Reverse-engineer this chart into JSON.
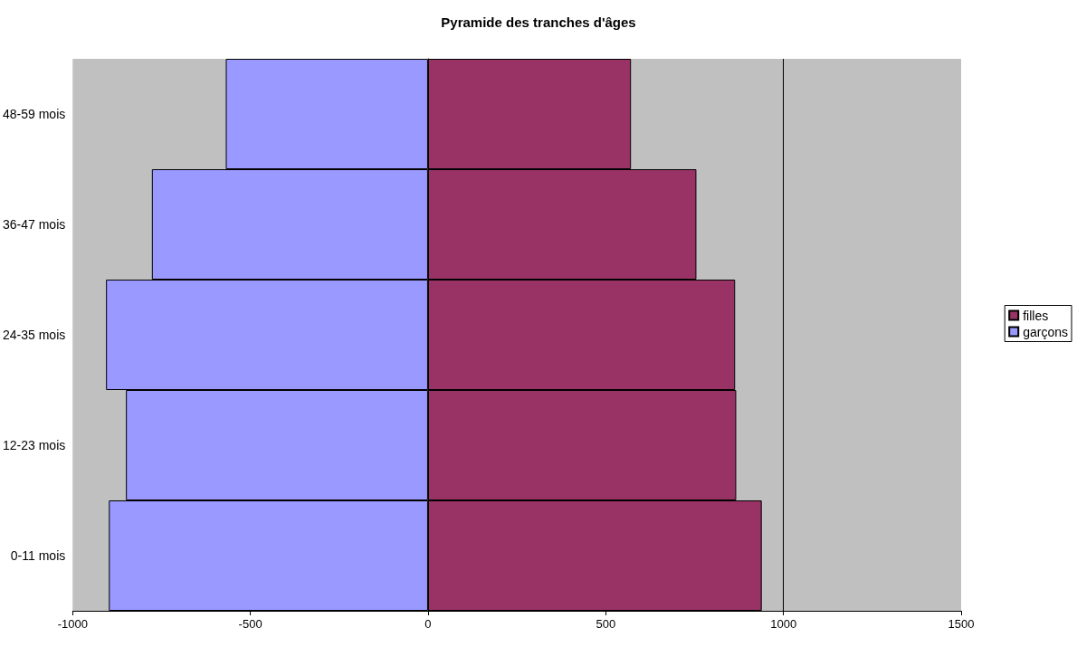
{
  "chart_data": {
    "type": "bar",
    "title": "Pyramide des tranches d'âges",
    "orientation": "horizontal",
    "categories": [
      "48-59 mois",
      "36-47 mois",
      "24-35 mois",
      "12-23 mois",
      "0-11 mois"
    ],
    "series": [
      {
        "name": "filles",
        "color": "#993366",
        "values": [
          571,
          755,
          864,
          867,
          939
        ]
      },
      {
        "name": "garçons",
        "color": "#9999ff",
        "values": [
          -569,
          -777,
          -906,
          -850,
          -898
        ]
      }
    ],
    "stacked": true,
    "xlim": [
      -1000,
      1500
    ],
    "xticks": [
      -1000,
      -500,
      0,
      500,
      1000,
      1500
    ],
    "grid": "x",
    "legend": "right"
  }
}
